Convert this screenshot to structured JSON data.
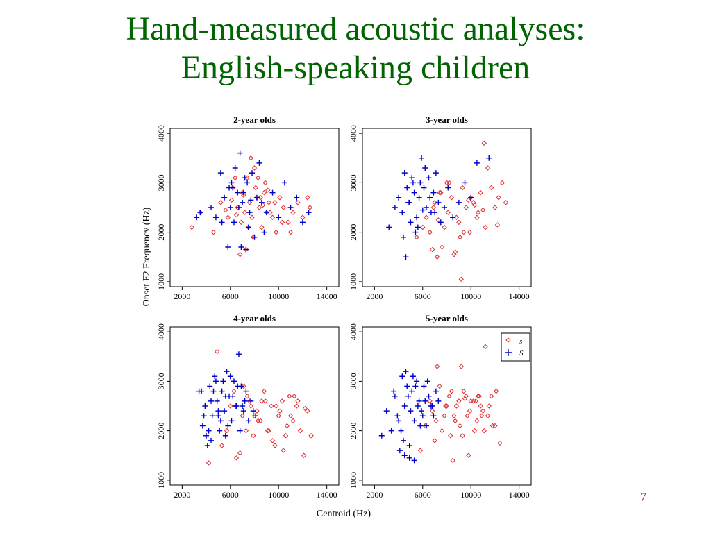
{
  "slide": {
    "title_line1": "Hand-measured acoustic analyses:",
    "title_line2": "English-speaking children",
    "page_number": "7"
  },
  "colors": {
    "title": "#006400",
    "s": "#e03030",
    "S": "#0000cc",
    "page_number": "#cc0000"
  },
  "figure": {
    "ylabel": "Onset F2 Frequency (Hz)",
    "xlabel": "Centroid (Hz)",
    "legend": {
      "s_label": "s",
      "S_label": "S"
    }
  },
  "chart_data": [
    {
      "type": "scatter",
      "title": "2-year olds",
      "xlim": [
        1000,
        15000
      ],
      "ylim": [
        900,
        4100
      ],
      "xticks": [
        2000,
        6000,
        10000,
        14000
      ],
      "yticks": [
        1000,
        2000,
        3000,
        4000
      ],
      "series": [
        {
          "name": "s",
          "marker": "diamond",
          "color": "#e03030",
          "x": [
            2800,
            3500,
            4600,
            5200,
            5800,
            6200,
            6600,
            6900,
            7000,
            7200,
            7400,
            7600,
            7800,
            8000,
            8200,
            8400,
            8600,
            8800,
            9000,
            9200,
            9500,
            9800,
            10100,
            10400,
            10800,
            11200,
            11600,
            12000,
            12400,
            12600,
            6400,
            6800,
            7300,
            7700,
            8100,
            8500,
            8900,
            9300,
            9700,
            10300,
            11000,
            5600,
            6100,
            7500,
            7900,
            8300,
            8700,
            9100,
            6500,
            7100
          ],
          "y": [
            2100,
            2400,
            2000,
            2600,
            2300,
            2900,
            2500,
            2200,
            2800,
            2400,
            3100,
            2600,
            2300,
            3300,
            2700,
            2500,
            2100,
            2800,
            2400,
            2600,
            2300,
            2000,
            2700,
            2500,
            2200,
            2400,
            2600,
            2300,
            2700,
            2500,
            3100,
            1550,
            1650,
            3500,
            2900,
            2700,
            3000,
            2400,
            2600,
            2200,
            2000,
            2450,
            2650,
            2100,
            1900,
            3100,
            2550,
            2850,
            2350,
            2750
          ]
        },
        {
          "name": "S",
          "marker": "plus",
          "color": "#0000cc",
          "x": [
            3200,
            3500,
            4400,
            4800,
            5200,
            5500,
            5800,
            6000,
            6200,
            6400,
            6600,
            6800,
            7000,
            7200,
            7400,
            7600,
            7800,
            8000,
            8200,
            8400,
            8600,
            8800,
            9000,
            9500,
            10000,
            10500,
            11000,
            11500,
            12000,
            12500,
            6900,
            7300,
            5900,
            6100,
            6300,
            6700,
            7100,
            7500,
            7700,
            5300
          ],
          "y": [
            2300,
            2400,
            2500,
            2300,
            3200,
            2700,
            1700,
            2500,
            2900,
            3300,
            2800,
            3600,
            2600,
            3100,
            3000,
            2400,
            3200,
            1900,
            2700,
            3400,
            2600,
            2000,
            2400,
            2800,
            2300,
            3000,
            2500,
            2700,
            2200,
            2400,
            1700,
            1650,
            2900,
            3000,
            2200,
            2500,
            2800,
            2100,
            2650,
            2200
          ]
        }
      ]
    },
    {
      "type": "scatter",
      "title": "3-year olds",
      "xlim": [
        1000,
        15000
      ],
      "ylim": [
        900,
        4100
      ],
      "xticks": [
        2000,
        6000,
        10000,
        14000
      ],
      "yticks": [
        1000,
        2000,
        3000,
        4000
      ],
      "series": [
        {
          "name": "s",
          "marker": "diamond",
          "color": "#e03030",
          "x": [
            5500,
            6000,
            6300,
            6600,
            6900,
            7200,
            7500,
            7800,
            8100,
            8400,
            8700,
            9000,
            9300,
            9600,
            9900,
            10200,
            10500,
            10800,
            11100,
            11400,
            11700,
            12000,
            12300,
            12600,
            12900,
            7000,
            7600,
            8200,
            8800,
            9400,
            10000,
            10600,
            11200,
            9200,
            8600,
            8000,
            7400,
            11000,
            12200,
            10300,
            9100,
            9800,
            6800,
            7300
          ],
          "y": [
            1900,
            2100,
            2300,
            2000,
            2500,
            1500,
            2800,
            2100,
            2400,
            2700,
            1600,
            2200,
            2900,
            2500,
            2000,
            2600,
            2300,
            2800,
            3800,
            3300,
            2900,
            2500,
            2700,
            3000,
            2600,
            2600,
            1700,
            3000,
            2300,
            2000,
            2700,
            2400,
            2100,
            1050,
            1550,
            3000,
            2800,
            2450,
            2150,
            2550,
            1900,
            2650,
            1650,
            2250
          ]
        },
        {
          "name": "S",
          "marker": "plus",
          "color": "#0000cc",
          "x": [
            3200,
            3700,
            4000,
            4300,
            4500,
            4700,
            4900,
            5100,
            5300,
            5500,
            5700,
            5900,
            6100,
            6300,
            6500,
            6700,
            6900,
            7100,
            7300,
            7500,
            7800,
            8100,
            8500,
            9000,
            9500,
            10000,
            10500,
            11500,
            4600,
            5000,
            5400,
            5800,
            6200,
            6600,
            7000,
            4400,
            4800,
            5200,
            5600,
            6000
          ],
          "y": [
            2100,
            2500,
            2700,
            2400,
            3200,
            2900,
            2600,
            3100,
            2800,
            2300,
            2700,
            3500,
            2900,
            2500,
            3100,
            2400,
            2800,
            3200,
            2600,
            2200,
            2500,
            2900,
            2300,
            2600,
            3000,
            2700,
            3400,
            3500,
            1500,
            2200,
            2000,
            3000,
            3300,
            2700,
            2400,
            1900,
            2600,
            3000,
            2100,
            2450
          ]
        }
      ]
    },
    {
      "type": "scatter",
      "title": "4-year olds",
      "xlim": [
        1000,
        15000
      ],
      "ylim": [
        900,
        4100
      ],
      "xticks": [
        2000,
        6000,
        10000,
        14000
      ],
      "yticks": [
        1000,
        2000,
        3000,
        4000
      ],
      "series": [
        {
          "name": "s",
          "marker": "diamond",
          "color": "#e03030",
          "x": [
            4200,
            4900,
            5300,
            6000,
            6500,
            7000,
            7300,
            7600,
            7900,
            8200,
            8500,
            8800,
            9100,
            9400,
            9700,
            10000,
            10300,
            10600,
            10900,
            11200,
            11500,
            11800,
            12100,
            12400,
            12700,
            7100,
            7700,
            8300,
            8900,
            9500,
            10100,
            10700,
            11300,
            6800,
            7400,
            8000,
            8600,
            9200,
            9800,
            10400,
            11000,
            11600,
            12200,
            5700,
            6300
          ],
          "y": [
            1350,
            3600,
            1700,
            2500,
            1450,
            2300,
            2000,
            2600,
            1900,
            2400,
            2200,
            2800,
            2000,
            2500,
            1700,
            2300,
            2600,
            1900,
            2700,
            2200,
            2500,
            2000,
            1500,
            2400,
            1900,
            2900,
            2500,
            2200,
            2600,
            1800,
            2400,
            2100,
            2700,
            1550,
            2700,
            2300,
            2600,
            2000,
            2500,
            1600,
            2300,
            2600,
            2450,
            2000,
            2800
          ]
        },
        {
          "name": "S",
          "marker": "plus",
          "color": "#0000cc",
          "x": [
            3400,
            3700,
            3900,
            4100,
            4300,
            4500,
            4700,
            4900,
            5100,
            5300,
            5500,
            5700,
            5900,
            6100,
            6300,
            6500,
            6700,
            6900,
            7100,
            7300,
            7500,
            7700,
            7900,
            8100,
            4000,
            4400,
            4800,
            5200,
            5600,
            6000,
            6400,
            6800,
            7200,
            3800,
            4200,
            4600,
            5000,
            5400,
            5800,
            6200,
            6600,
            7000,
            3600,
            4400,
            5000,
            5600
          ],
          "y": [
            2800,
            2100,
            2500,
            1700,
            2900,
            2300,
            3100,
            2600,
            2000,
            2800,
            2400,
            3200,
            2700,
            2200,
            3000,
            2500,
            3550,
            2900,
            2400,
            2800,
            2200,
            2600,
            2400,
            2300,
            1900,
            2600,
            3000,
            2200,
            2700,
            3100,
            2500,
            2000,
            2600,
            2300,
            2000,
            2800,
            2400,
            3000,
            2100,
            2700,
            2900,
            2500,
            2800,
            1800,
            2300,
            1900
          ]
        }
      ]
    },
    {
      "type": "scatter",
      "title": "5-year olds",
      "xlim": [
        1000,
        15000
      ],
      "ylim": [
        900,
        4100
      ],
      "xticks": [
        2000,
        6000,
        10000,
        14000
      ],
      "yticks": [
        1000,
        2000,
        3000,
        4000
      ],
      "series": [
        {
          "name": "s",
          "marker": "diamond",
          "color": "#e03030",
          "x": [
            5800,
            6200,
            6600,
            7000,
            7400,
            7800,
            8200,
            8500,
            8800,
            9100,
            9400,
            9700,
            10000,
            10300,
            10600,
            10900,
            11200,
            11500,
            11800,
            12100,
            12400,
            6800,
            7200,
            7600,
            8000,
            8400,
            8700,
            9000,
            9300,
            9600,
            9900,
            10200,
            10500,
            10800,
            11100,
            11400,
            11700,
            12000,
            8600,
            9200,
            9800,
            10400,
            11000,
            10700,
            7100,
            7900,
            8300,
            9500
          ],
          "y": [
            1600,
            2100,
            2600,
            1800,
            2900,
            2300,
            2700,
            1400,
            2500,
            2100,
            2800,
            2300,
            2600,
            2000,
            2700,
            2300,
            3700,
            2500,
            2100,
            2800,
            1750,
            2400,
            3300,
            2000,
            2500,
            2800,
            2200,
            2600,
            1900,
            2700,
            2400,
            2600,
            2200,
            2500,
            2000,
            2300,
            2700,
            2100,
            2300,
            3300,
            1500,
            2600,
            2400,
            2700,
            2200,
            2500,
            1900,
            2650
          ]
        },
        {
          "name": "S",
          "marker": "plus",
          "color": "#0000cc",
          "x": [
            2600,
            3000,
            3400,
            3700,
            3900,
            4100,
            4300,
            4500,
            4700,
            4900,
            5100,
            5300,
            5500,
            5700,
            5900,
            6100,
            6300,
            6500,
            6700,
            6900,
            7100,
            7300,
            4000,
            4400,
            4800,
            5200,
            5600,
            6000,
            6400,
            6800,
            3600,
            4200,
            4600,
            5000,
            5400,
            5800,
            4500,
            4900,
            5300,
            6200
          ],
          "y": [
            1900,
            2400,
            2000,
            2700,
            2300,
            1600,
            3100,
            2500,
            2900,
            1450,
            2800,
            2200,
            3000,
            2600,
            2400,
            2900,
            2100,
            2700,
            2500,
            2300,
            2800,
            2600,
            2200,
            1800,
            2700,
            3100,
            2500,
            2300,
            3000,
            2500,
            2800,
            2000,
            3200,
            2400,
            2900,
            2100,
            1500,
            1700,
            1400,
            2600
          ]
        }
      ]
    }
  ]
}
